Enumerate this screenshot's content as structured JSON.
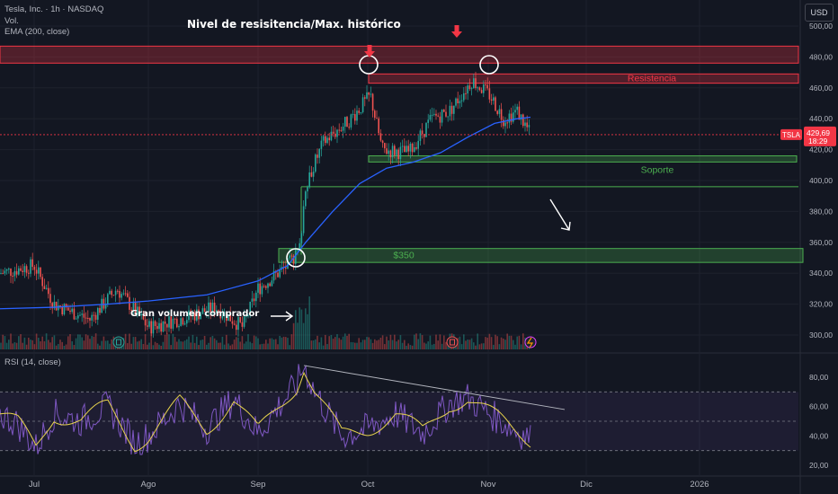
{
  "header": {
    "symbol_line": "Tesla, Inc. · 1h · NASDAQ",
    "volume_label": "Vol.",
    "ema_label": "EMA (200, close)",
    "currency_button": "USD"
  },
  "colors": {
    "background": "#131722",
    "up_candle": "#26a69a",
    "down_candle": "#ef5350",
    "ema_line": "#2962ff",
    "rsi_line": "#7e57c2",
    "rsi_ma_line": "#e8d44d",
    "resistance_zone": "#f23645",
    "support_zone": "#4caf50",
    "trendline": "#b2b5be"
  },
  "chart_data": [
    {
      "type": "line",
      "subtype": "candlestick",
      "ylim": [
        290,
        505
      ],
      "y_axis_ticks": [
        "500,00",
        "480,00",
        "460,00",
        "440,00",
        "420,00",
        "400,00",
        "380,00",
        "360,00",
        "340,00",
        "320,00",
        "300,00"
      ],
      "x_axis_ticks": [
        "Jul",
        "Ago",
        "Sep",
        "Oct",
        "Nov",
        "Dic",
        "2026"
      ],
      "series": [
        {
          "name": "EMA (200, close)",
          "x": [
            "Jul",
            "Ago",
            "Sep",
            "Oct",
            "Nov"
          ],
          "values": [
            316,
            322,
            335,
            405,
            438
          ]
        }
      ],
      "price_path": {
        "x": [
          "Jul",
          "Ago",
          "Sep",
          "Sep 15",
          "Oct",
          "Oct 15",
          "Nov",
          "Nov 10"
        ],
        "values": [
          340,
          305,
          330,
          400,
          455,
          420,
          465,
          430
        ]
      },
      "last_price": "429,69",
      "price_badge_symbol": "TSLA",
      "price_badge_timer": "18:29",
      "zones": [
        {
          "label": "",
          "from": 476,
          "to": 487,
          "color": "#f23645"
        },
        {
          "label": "Resistencia",
          "from": 463,
          "to": 469,
          "color": "#f23645"
        },
        {
          "label": "Soporte",
          "from": 412,
          "to": 416,
          "color": "#4caf50"
        },
        {
          "label": "$350",
          "from": 347,
          "to": 356,
          "color": "#4caf50"
        }
      ],
      "annotations": [
        {
          "text": "Nivel de resisitencia/Max. histórico"
        },
        {
          "text": "Gran volumen comprador"
        }
      ]
    },
    {
      "type": "line",
      "title": "RSI (14, close)",
      "ylim": [
        15,
        95
      ],
      "y_axis_ticks": [
        "80,00",
        "60,00",
        "40,00",
        "20,00"
      ],
      "bands": [
        70,
        50,
        30
      ],
      "series": [
        {
          "name": "RSI",
          "x": [
            "Jul",
            "Ago",
            "Sep",
            "Sep 15",
            "Oct",
            "Nov",
            "Nov 10"
          ],
          "values": [
            55,
            35,
            50,
            88,
            45,
            62,
            38
          ]
        }
      ]
    }
  ]
}
